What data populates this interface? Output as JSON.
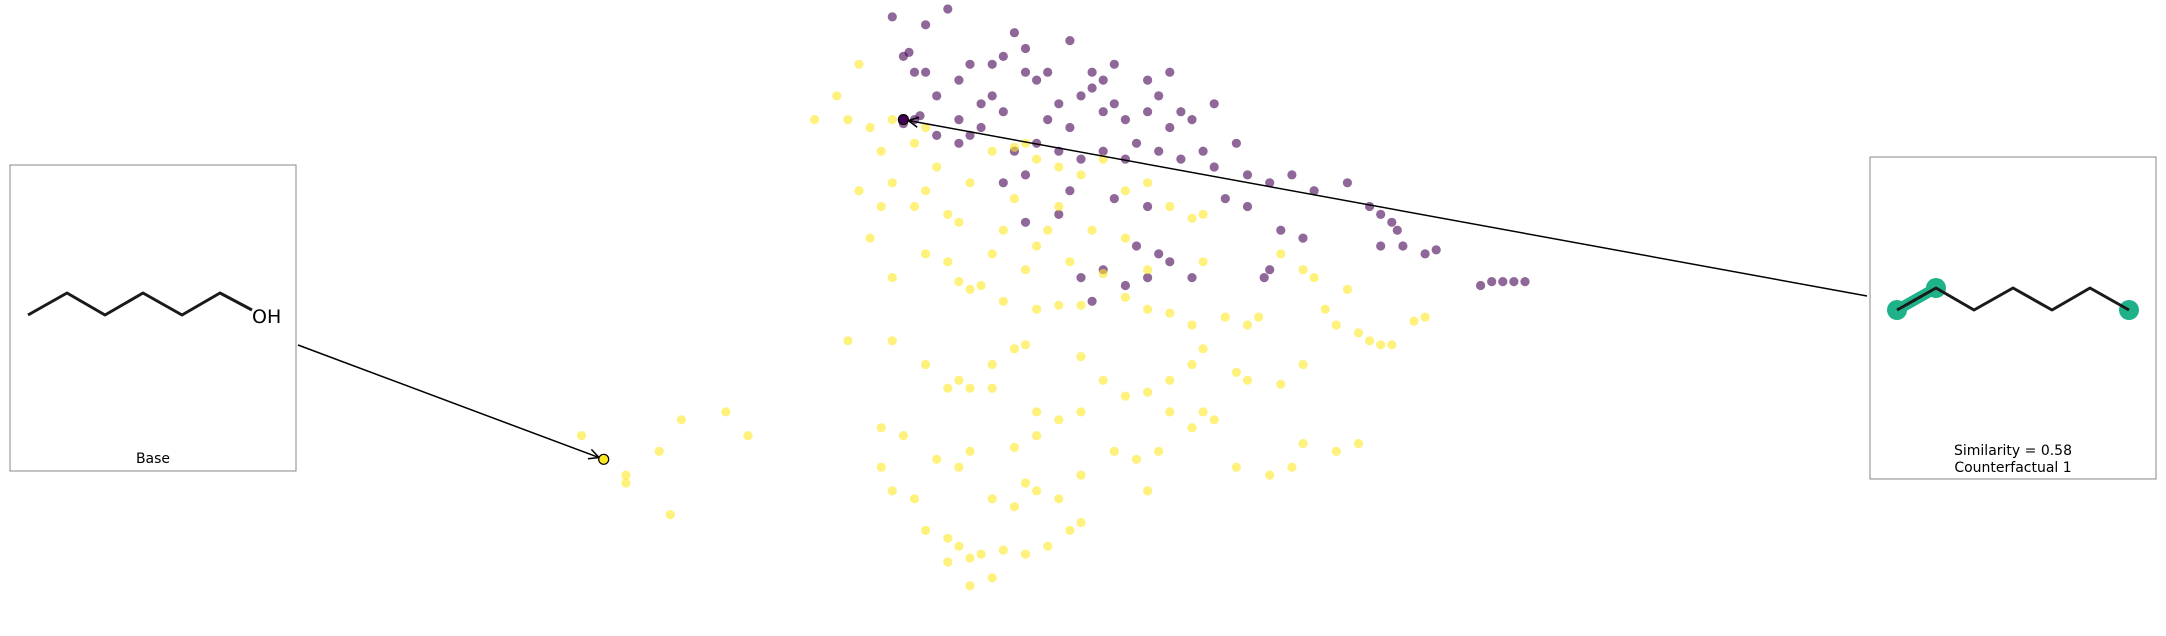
{
  "chart_data": {
    "type": "scatter",
    "title": "",
    "xlabel": "",
    "ylabel": "",
    "axes_visible": false,
    "grid": false,
    "colors": {
      "class_0": "#440154",
      "class_1": "#fde725"
    },
    "point_alpha": 0.6,
    "base_point": {
      "x": -2.3,
      "y": -1.7,
      "color": "#fde725"
    },
    "counterfactual_point": {
      "x": 0.4,
      "y": 2.6,
      "color": "#440154"
    },
    "base_panel": {
      "caption": "Base",
      "molecule_label": "OH",
      "molecule": "1-hexanol"
    },
    "counterfactual_panel": {
      "caption_line1": "Similarity = 0.58",
      "caption_line2": "Counterfactual 1",
      "molecule": "hexane",
      "highlight_color": "#1fb28a"
    },
    "series": [
      {
        "name": "",
        "class": 0,
        "color": "#440154",
        "points": [
          [
            0.3,
            3.9
          ],
          [
            0.8,
            4.0
          ],
          [
            0.6,
            3.8
          ],
          [
            1.9,
            3.6
          ],
          [
            1.4,
            3.7
          ],
          [
            0.4,
            3.4
          ],
          [
            0.5,
            3.2
          ],
          [
            0.6,
            3.2
          ],
          [
            0.9,
            3.1
          ],
          [
            1.0,
            3.3
          ],
          [
            1.2,
            3.3
          ],
          [
            1.3,
            3.4
          ],
          [
            1.5,
            3.2
          ],
          [
            1.6,
            3.1
          ],
          [
            1.7,
            3.2
          ],
          [
            2.1,
            3.2
          ],
          [
            2.2,
            3.1
          ],
          [
            2.3,
            3.3
          ],
          [
            2.6,
            3.1
          ],
          [
            2.8,
            3.2
          ],
          [
            3.2,
            2.8
          ],
          [
            1.1,
            2.8
          ],
          [
            1.2,
            2.9
          ],
          [
            1.3,
            2.7
          ],
          [
            1.8,
            2.8
          ],
          [
            2.0,
            2.9
          ],
          [
            2.2,
            2.7
          ],
          [
            2.3,
            2.8
          ],
          [
            2.4,
            2.6
          ],
          [
            2.6,
            2.7
          ],
          [
            2.7,
            2.9
          ],
          [
            2.9,
            2.7
          ],
          [
            3.0,
            2.6
          ],
          [
            0.4,
            2.55
          ],
          [
            0.5,
            2.6
          ],
          [
            0.55,
            2.65
          ],
          [
            0.7,
            2.4
          ],
          [
            0.9,
            2.3
          ],
          [
            1.0,
            2.4
          ],
          [
            1.4,
            2.2
          ],
          [
            1.6,
            2.3
          ],
          [
            1.8,
            2.2
          ],
          [
            2.0,
            2.1
          ],
          [
            2.2,
            2.2
          ],
          [
            2.4,
            2.1
          ],
          [
            2.5,
            2.3
          ],
          [
            2.7,
            2.2
          ],
          [
            2.9,
            2.1
          ],
          [
            3.1,
            2.2
          ],
          [
            3.2,
            2.0
          ],
          [
            3.5,
            1.9
          ],
          [
            3.7,
            1.8
          ],
          [
            3.9,
            1.9
          ],
          [
            4.1,
            1.7
          ],
          [
            1.3,
            1.8
          ],
          [
            1.5,
            1.9
          ],
          [
            1.9,
            1.7
          ],
          [
            2.3,
            1.6
          ],
          [
            2.6,
            1.5
          ],
          [
            3.3,
            1.6
          ],
          [
            3.5,
            1.5
          ],
          [
            3.8,
            1.2
          ],
          [
            4.0,
            1.1
          ],
          [
            4.4,
            1.8
          ],
          [
            4.6,
            1.5
          ],
          [
            4.7,
            1.4
          ],
          [
            4.8,
            1.3
          ],
          [
            4.85,
            1.2
          ],
          [
            4.7,
            1.0
          ],
          [
            4.9,
            1.0
          ],
          [
            5.1,
            0.9
          ],
          [
            5.2,
            0.95
          ],
          [
            1.5,
            1.3
          ],
          [
            1.8,
            1.4
          ],
          [
            2.5,
            1.0
          ],
          [
            2.7,
            0.9
          ],
          [
            2.8,
            0.8
          ],
          [
            3.7,
            0.7
          ],
          [
            3.65,
            0.6
          ],
          [
            2.0,
            0.6
          ],
          [
            2.2,
            0.7
          ],
          [
            2.4,
            0.5
          ],
          [
            2.1,
            0.3
          ],
          [
            2.6,
            0.6
          ],
          [
            3.0,
            0.6
          ],
          [
            5.6,
            0.5
          ],
          [
            5.7,
            0.55
          ],
          [
            5.8,
            0.55
          ],
          [
            5.9,
            0.55
          ],
          [
            6.0,
            0.55
          ],
          [
            0.7,
            2.9
          ],
          [
            0.9,
            2.6
          ],
          [
            1.1,
            2.5
          ],
          [
            1.7,
            2.6
          ],
          [
            1.9,
            2.5
          ],
          [
            2.8,
            2.5
          ],
          [
            3.4,
            2.3
          ],
          [
            2.1,
            3.0
          ],
          [
            1.5,
            3.5
          ],
          [
            0.45,
            3.45
          ]
        ]
      },
      {
        "name": "",
        "class": 1,
        "color": "#fde725",
        "points": [
          [
            0.0,
            3.3
          ],
          [
            -0.2,
            2.9
          ],
          [
            -0.4,
            2.6
          ],
          [
            -0.1,
            2.6
          ],
          [
            0.1,
            2.5
          ],
          [
            0.3,
            2.6
          ],
          [
            0.6,
            2.5
          ],
          [
            0.5,
            2.3
          ],
          [
            0.2,
            2.2
          ],
          [
            0.7,
            2.0
          ],
          [
            1.2,
            2.2
          ],
          [
            1.4,
            2.25
          ],
          [
            1.5,
            2.3
          ],
          [
            1.6,
            2.1
          ],
          [
            1.8,
            2.0
          ],
          [
            2.0,
            1.9
          ],
          [
            2.2,
            2.1
          ],
          [
            0.3,
            1.8
          ],
          [
            0.6,
            1.7
          ],
          [
            1.0,
            1.8
          ],
          [
            1.4,
            1.6
          ],
          [
            2.4,
            1.7
          ],
          [
            2.6,
            1.8
          ],
          [
            0.0,
            1.7
          ],
          [
            0.2,
            1.5
          ],
          [
            0.5,
            1.5
          ],
          [
            0.8,
            1.4
          ],
          [
            0.9,
            1.3
          ],
          [
            1.3,
            1.2
          ],
          [
            1.6,
            1.0
          ],
          [
            1.7,
            1.2
          ],
          [
            1.8,
            1.5
          ],
          [
            2.1,
            1.2
          ],
          [
            2.4,
            1.1
          ],
          [
            2.8,
            1.5
          ],
          [
            3.0,
            1.35
          ],
          [
            3.1,
            1.4
          ],
          [
            0.1,
            1.1
          ],
          [
            0.6,
            0.9
          ],
          [
            0.8,
            0.8
          ],
          [
            1.2,
            0.9
          ],
          [
            1.5,
            0.7
          ],
          [
            1.9,
            0.8
          ],
          [
            2.2,
            0.65
          ],
          [
            2.6,
            0.7
          ],
          [
            3.1,
            0.8
          ],
          [
            3.8,
            0.9
          ],
          [
            4.0,
            0.7
          ],
          [
            4.1,
            0.6
          ],
          [
            4.4,
            0.45
          ],
          [
            0.3,
            0.6
          ],
          [
            0.9,
            0.55
          ],
          [
            1.0,
            0.45
          ],
          [
            1.1,
            0.5
          ],
          [
            1.3,
            0.3
          ],
          [
            1.6,
            0.2
          ],
          [
            1.8,
            0.25
          ],
          [
            2.0,
            0.25
          ],
          [
            2.4,
            0.35
          ],
          [
            2.6,
            0.2
          ],
          [
            2.8,
            0.15
          ],
          [
            3.0,
            0.0
          ],
          [
            3.3,
            0.1
          ],
          [
            3.5,
            0.0
          ],
          [
            3.6,
            0.1
          ],
          [
            4.2,
            0.2
          ],
          [
            4.3,
            0.0
          ],
          [
            4.5,
            -0.1
          ],
          [
            4.6,
            -0.2
          ],
          [
            4.7,
            -0.25
          ],
          [
            4.8,
            -0.25
          ],
          [
            5.0,
            0.05
          ],
          [
            5.1,
            0.1
          ],
          [
            -0.1,
            -0.2
          ],
          [
            0.3,
            -0.2
          ],
          [
            0.6,
            -0.5
          ],
          [
            0.8,
            -0.8
          ],
          [
            1.2,
            -0.5
          ],
          [
            1.4,
            -0.3
          ],
          [
            1.5,
            -0.25
          ],
          [
            2.0,
            -0.4
          ],
          [
            2.2,
            -0.7
          ],
          [
            2.4,
            -0.9
          ],
          [
            2.6,
            -0.85
          ],
          [
            2.8,
            -0.7
          ],
          [
            3.0,
            -0.5
          ],
          [
            3.1,
            -0.3
          ],
          [
            3.4,
            -0.6
          ],
          [
            3.5,
            -0.7
          ],
          [
            3.8,
            -0.75
          ],
          [
            4.0,
            -0.5
          ],
          [
            0.9,
            -0.7
          ],
          [
            1.0,
            -0.8
          ],
          [
            1.2,
            -0.8
          ],
          [
            1.6,
            -1.1
          ],
          [
            1.8,
            -1.2
          ],
          [
            2.0,
            -1.1
          ],
          [
            2.8,
            -1.1
          ],
          [
            3.1,
            -1.1
          ],
          [
            3.2,
            -1.2
          ],
          [
            3.0,
            -1.3
          ],
          [
            0.2,
            -1.3
          ],
          [
            0.4,
            -1.4
          ],
          [
            0.7,
            -1.7
          ],
          [
            0.9,
            -1.8
          ],
          [
            1.0,
            -1.6
          ],
          [
            1.4,
            -1.55
          ],
          [
            1.6,
            -1.4
          ],
          [
            2.3,
            -1.6
          ],
          [
            2.5,
            -1.7
          ],
          [
            2.7,
            -1.6
          ],
          [
            3.4,
            -1.8
          ],
          [
            3.7,
            -1.9
          ],
          [
            3.9,
            -1.8
          ],
          [
            4.0,
            -1.5
          ],
          [
            4.3,
            -1.6
          ],
          [
            4.5,
            -1.5
          ],
          [
            0.2,
            -1.8
          ],
          [
            0.3,
            -2.1
          ],
          [
            0.5,
            -2.2
          ],
          [
            0.6,
            -2.6
          ],
          [
            0.8,
            -2.7
          ],
          [
            0.9,
            -2.8
          ],
          [
            1.0,
            -2.95
          ],
          [
            1.1,
            -2.9
          ],
          [
            1.3,
            -2.85
          ],
          [
            1.5,
            -2.9
          ],
          [
            1.7,
            -2.8
          ],
          [
            1.9,
            -2.6
          ],
          [
            2.0,
            -2.5
          ],
          [
            1.8,
            -2.2
          ],
          [
            1.6,
            -2.1
          ],
          [
            1.5,
            -2.0
          ],
          [
            1.2,
            -2.2
          ],
          [
            0.8,
            -3.0
          ],
          [
            1.0,
            -3.3
          ],
          [
            1.2,
            -3.2
          ],
          [
            1.4,
            -2.3
          ],
          [
            2.0,
            -1.9
          ],
          [
            2.6,
            -2.1
          ],
          [
            -2.5,
            -1.4
          ],
          [
            -2.1,
            -1.9
          ],
          [
            -1.6,
            -1.2
          ],
          [
            -2.1,
            -2.0
          ],
          [
            -1.8,
            -1.6
          ],
          [
            -1.2,
            -1.1
          ],
          [
            -1.7,
            -2.4
          ],
          [
            -1.0,
            -1.4
          ]
        ]
      }
    ]
  }
}
